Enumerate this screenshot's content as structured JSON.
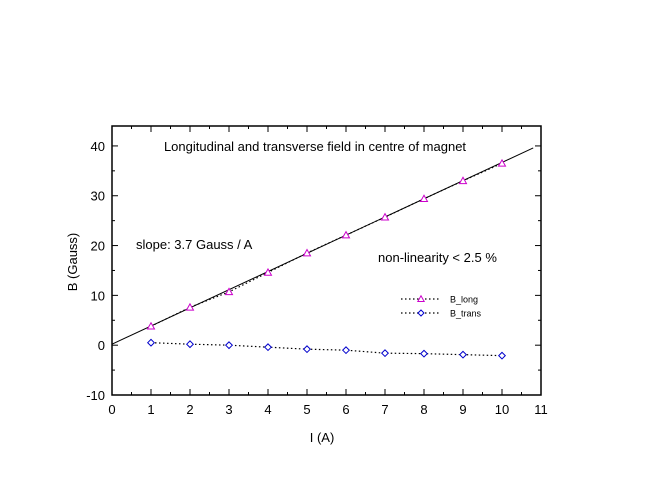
{
  "chart_data": {
    "type": "line",
    "title": "Longitudinal and transverse field in centre of magnet",
    "xlabel": "I (A)",
    "ylabel": "B (Gauss)",
    "xlim": [
      0,
      11
    ],
    "ylim": [
      -10,
      44
    ],
    "xticks": [
      "0",
      "1",
      "2",
      "3",
      "4",
      "5",
      "6",
      "7",
      "8",
      "9",
      "10",
      "11"
    ],
    "yticks": [
      "-10",
      "0",
      "10",
      "20",
      "30",
      "40"
    ],
    "grid": false,
    "legend_position": "right",
    "annotations": [
      "slope: 3.7 Gauss / A",
      "non-linearity < 2.5 %"
    ],
    "series": [
      {
        "name": "B_long",
        "marker": "triangle",
        "color": "#cc00cc",
        "x": [
          1,
          2,
          3,
          4,
          5,
          6,
          7,
          8,
          9,
          10
        ],
        "values": [
          3.8,
          7.6,
          10.7,
          14.6,
          18.5,
          22.1,
          25.7,
          29.4,
          33.0,
          36.5
        ]
      },
      {
        "name": "B_trans",
        "marker": "diamond",
        "color": "#0000cc",
        "x": [
          1,
          2,
          3,
          4,
          5,
          6,
          7,
          8,
          9,
          10
        ],
        "values": [
          0.5,
          0.2,
          0.0,
          -0.4,
          -0.8,
          -1.0,
          -1.6,
          -1.7,
          -1.9,
          -2.1
        ]
      }
    ],
    "fit_line": {
      "x": [
        0,
        10.8
      ],
      "values": [
        0.2,
        39.6
      ]
    }
  }
}
